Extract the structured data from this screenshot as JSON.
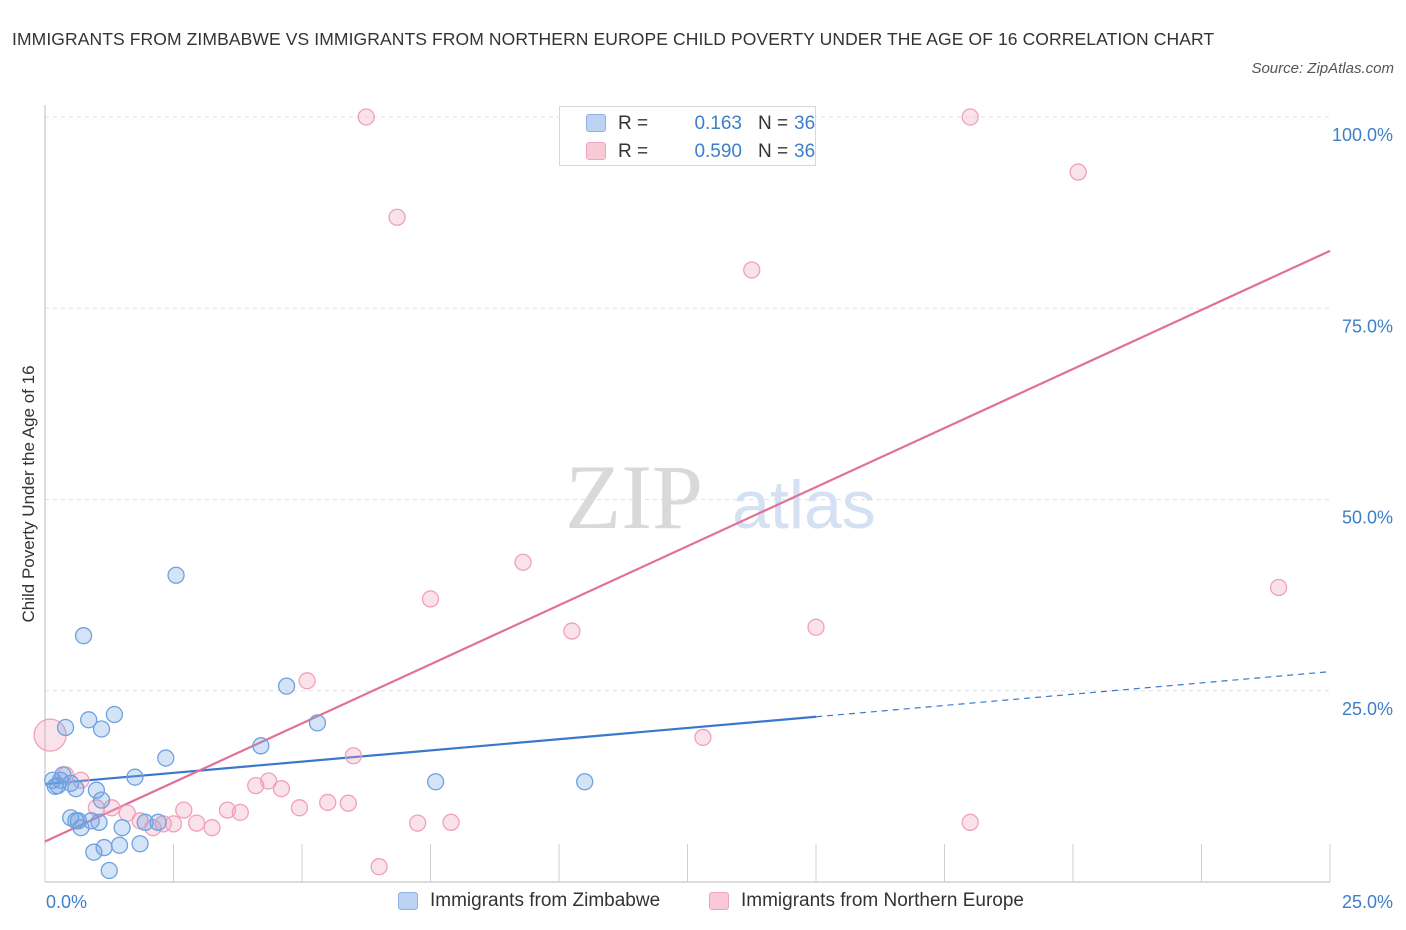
{
  "title": "IMMIGRANTS FROM ZIMBABWE VS IMMIGRANTS FROM NORTHERN EUROPE CHILD POVERTY UNDER THE AGE OF 16 CORRELATION CHART",
  "source": "Source: ZipAtlas.com",
  "watermark": {
    "zip": "ZIP",
    "atlas": "atlas"
  },
  "legend": {
    "r_label": "R =",
    "n_label": "N =",
    "series": [
      {
        "name": "Immigrants from Zimbabwe",
        "r": "0.163",
        "n": "36"
      },
      {
        "name": "Immigrants from Northern Europe",
        "r": "0.590",
        "n": "36"
      }
    ]
  },
  "chart_data": {
    "type": "scatter",
    "title": "IMMIGRANTS FROM ZIMBABWE VS IMMIGRANTS FROM NORTHERN EUROPE CHILD POVERTY UNDER THE AGE OF 16 CORRELATION CHART",
    "xlabel": "",
    "ylabel": "Child Poverty Under the Age of 16",
    "xlim": [
      0,
      25
    ],
    "ylim": [
      0,
      100
    ],
    "x_tick_labels": [
      "0.0%",
      "25.0%"
    ],
    "y_ticks": [
      25,
      50,
      75,
      100
    ],
    "y_tick_labels": [
      "25.0%",
      "50.0%",
      "75.0%",
      "100.0%"
    ],
    "grid": true,
    "series": [
      {
        "name": "Immigrants from Zimbabwe",
        "color": "#6fa1e0",
        "line_color": "#3a78cc",
        "trend": {
          "x0": 0,
          "y0": 12.8,
          "x1": 15,
          "y1": 21.6,
          "dash_to_x": 25,
          "dash_to_y": 27.5
        },
        "points": [
          [
            0.15,
            13.3
          ],
          [
            0.2,
            12.5
          ],
          [
            0.3,
            13.3
          ],
          [
            0.5,
            12.9
          ],
          [
            0.6,
            12.2
          ],
          [
            0.35,
            14.0
          ],
          [
            0.4,
            20.2
          ],
          [
            0.5,
            8.4
          ],
          [
            0.6,
            8.0
          ],
          [
            0.65,
            8.0
          ],
          [
            0.7,
            7.1
          ],
          [
            0.75,
            32.2
          ],
          [
            0.85,
            21.2
          ],
          [
            0.9,
            8.0
          ],
          [
            0.95,
            3.9
          ],
          [
            1.0,
            12.0
          ],
          [
            1.05,
            7.8
          ],
          [
            1.1,
            10.7
          ],
          [
            1.1,
            20.0
          ],
          [
            1.15,
            4.5
          ],
          [
            1.25,
            1.5
          ],
          [
            1.35,
            21.9
          ],
          [
            1.45,
            4.8
          ],
          [
            1.5,
            7.1
          ],
          [
            1.75,
            13.7
          ],
          [
            1.85,
            5.0
          ],
          [
            2.2,
            7.8
          ],
          [
            2.35,
            16.2
          ],
          [
            2.55,
            40.1
          ],
          [
            4.2,
            17.8
          ],
          [
            4.7,
            25.6
          ],
          [
            5.3,
            20.8
          ],
          [
            7.6,
            13.1
          ],
          [
            10.5,
            13.1
          ],
          [
            1.95,
            7.8
          ],
          [
            0.25,
            12.6
          ]
        ]
      },
      {
        "name": "Immigrants from Northern Europe",
        "color": "#f0a0bc",
        "line_color": "#e07098",
        "trend": {
          "x0": 0,
          "y0": 5.3,
          "x1": 25,
          "y1": 82.5
        },
        "points": [
          [
            0.1,
            19.2
          ],
          [
            0.4,
            14.0
          ],
          [
            0.7,
            13.3
          ],
          [
            1.0,
            9.7
          ],
          [
            1.3,
            9.7
          ],
          [
            1.6,
            9.0
          ],
          [
            1.85,
            8.0
          ],
          [
            2.1,
            7.1
          ],
          [
            2.3,
            7.6
          ],
          [
            2.5,
            7.6
          ],
          [
            2.7,
            9.4
          ],
          [
            2.95,
            7.7
          ],
          [
            3.25,
            7.1
          ],
          [
            3.55,
            9.4
          ],
          [
            3.8,
            9.1
          ],
          [
            4.1,
            12.6
          ],
          [
            4.35,
            13.2
          ],
          [
            4.6,
            12.2
          ],
          [
            4.95,
            9.7
          ],
          [
            5.1,
            26.3
          ],
          [
            5.5,
            10.4
          ],
          [
            5.9,
            10.3
          ],
          [
            6.0,
            16.5
          ],
          [
            6.25,
            100.0
          ],
          [
            6.5,
            2.0
          ],
          [
            6.85,
            86.9
          ],
          [
            7.25,
            7.7
          ],
          [
            7.5,
            37.0
          ],
          [
            7.9,
            7.8
          ],
          [
            9.3,
            41.8
          ],
          [
            10.25,
            32.8
          ],
          [
            12.8,
            18.9
          ],
          [
            13.75,
            80.0
          ],
          [
            15.0,
            33.3
          ],
          [
            18.0,
            7.8
          ],
          [
            24.0,
            38.5
          ]
        ],
        "extra_points": [
          [
            18.0,
            100.0
          ],
          [
            20.1,
            92.8
          ]
        ]
      }
    ]
  }
}
